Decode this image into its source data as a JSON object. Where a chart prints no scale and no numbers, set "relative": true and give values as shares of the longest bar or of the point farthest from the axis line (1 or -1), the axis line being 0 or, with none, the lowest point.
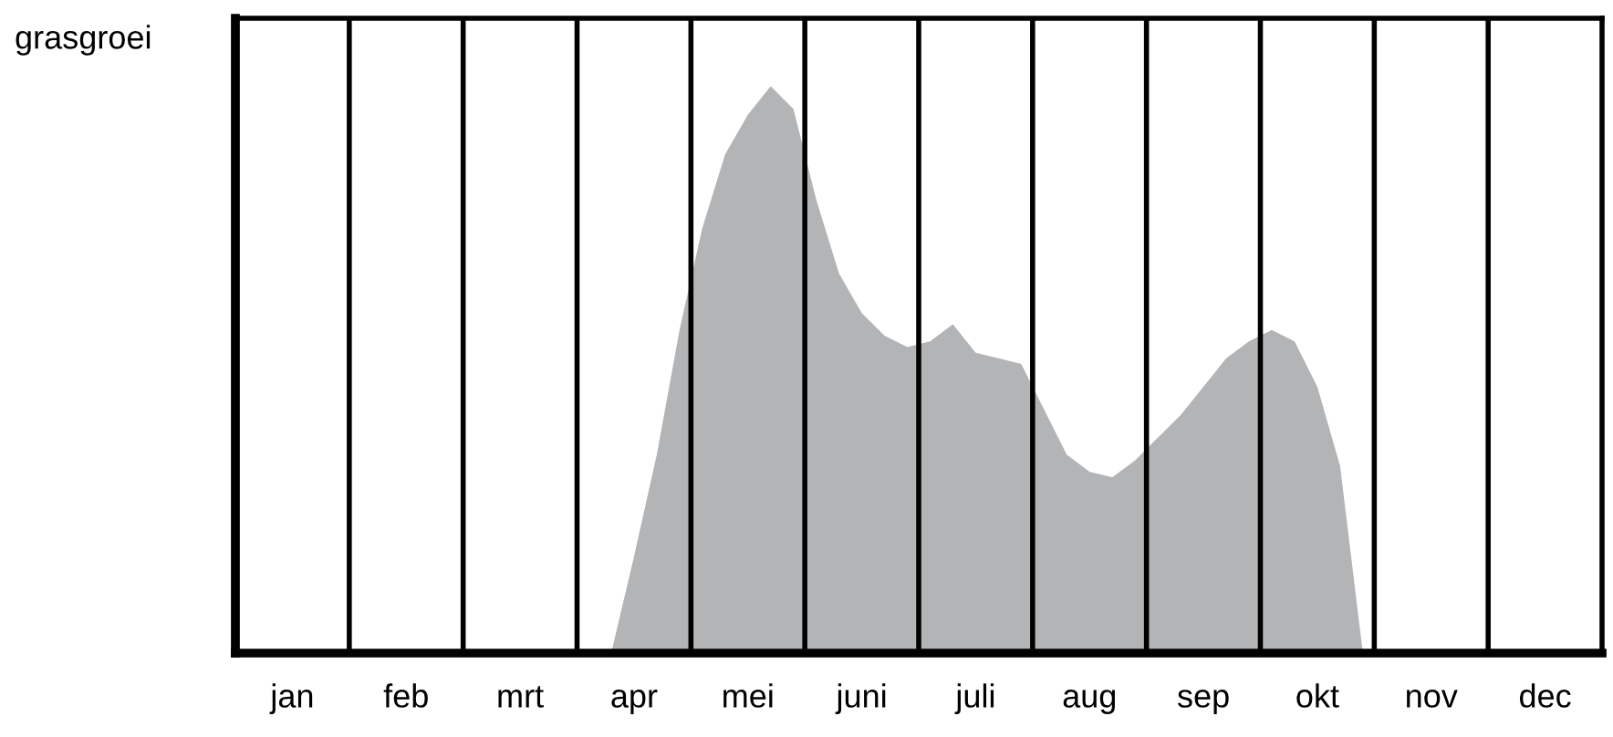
{
  "chart_data": {
    "type": "area",
    "ylabel": "grasgroei",
    "relative": true,
    "grid": "x",
    "legend": false,
    "categories": [
      null,
      null,
      "jan",
      null,
      null,
      null,
      null,
      "feb",
      null,
      null,
      null,
      null,
      "mrt",
      null,
      null,
      null,
      null,
      "apr",
      null,
      null,
      null,
      null,
      "mei",
      null,
      null,
      null,
      null,
      "juni",
      null,
      null,
      null,
      null,
      "juli",
      null,
      null,
      null,
      null,
      "aug",
      null,
      null,
      null,
      null,
      "sep",
      null,
      null,
      null,
      null,
      "okt",
      null,
      null,
      null,
      null,
      "nov",
      null,
      null,
      null,
      null,
      "dec",
      null,
      null
    ],
    "series": [
      {
        "color": "#b3b4b6",
        "values": [
          0,
          0,
          0,
          0,
          0,
          0,
          0,
          0,
          0,
          0,
          0,
          0,
          0,
          0,
          0,
          0,
          0,
          0.17,
          0.35,
          0.57,
          0.75,
          0.88,
          0.95,
          1.0,
          0.96,
          0.8,
          0.67,
          0.6,
          0.56,
          0.54,
          0.55,
          0.58,
          0.53,
          0.52,
          0.51,
          0.43,
          0.35,
          0.32,
          0.31,
          0.34,
          0.38,
          0.42,
          0.47,
          0.52,
          0.55,
          0.57,
          0.55,
          0.47,
          0.33,
          0,
          0,
          0,
          0,
          0,
          0,
          0,
          0,
          0,
          0,
          0
        ]
      }
    ]
  }
}
